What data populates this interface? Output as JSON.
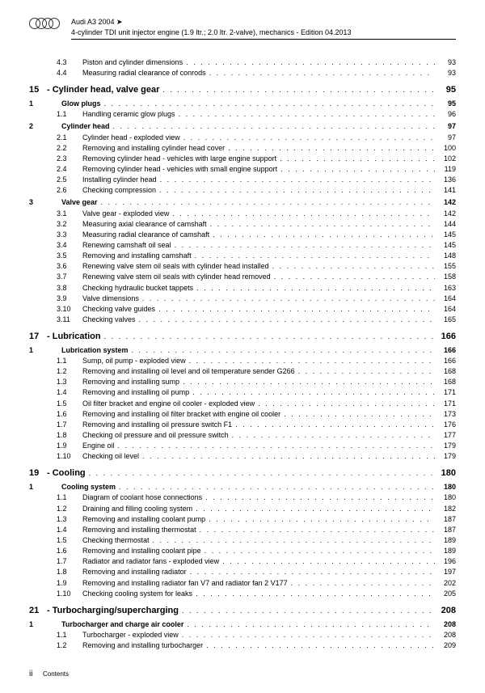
{
  "header": {
    "model": "Audi A3 2004 ➤",
    "subtitle": "4-cylinder TDI unit injector engine (1.9 ltr.; 2.0 ltr. 2-valve), mechanics - Edition 04.2013"
  },
  "footer": {
    "page": "ii",
    "label": "Contents"
  },
  "style": {
    "dot_char": ". ",
    "chap_num_prefix": "",
    "chap_sep": " - "
  },
  "toc": [
    {
      "num": "4.3",
      "txt": "Piston and cylinder dimensions",
      "pg": "93",
      "lvl": "item"
    },
    {
      "num": "4.4",
      "txt": "Measuring radial clearance of conrods",
      "pg": "93",
      "lvl": "item"
    },
    {
      "num": "15",
      "txt": "Cylinder head, valve gear",
      "pg": "95",
      "lvl": "chap"
    },
    {
      "num": "1",
      "txt": "Glow plugs",
      "pg": "95",
      "lvl": "sec"
    },
    {
      "num": "1.1",
      "txt": "Handling ceramic glow plugs",
      "pg": "96",
      "lvl": "item"
    },
    {
      "num": "2",
      "txt": "Cylinder head",
      "pg": "97",
      "lvl": "sec"
    },
    {
      "num": "2.1",
      "txt": "Cylinder head - exploded view",
      "pg": "97",
      "lvl": "item"
    },
    {
      "num": "2.2",
      "txt": "Removing and installing cylinder head cover",
      "pg": "100",
      "lvl": "item"
    },
    {
      "num": "2.3",
      "txt": "Removing cylinder head - vehicles with large engine support",
      "pg": "102",
      "lvl": "item"
    },
    {
      "num": "2.4",
      "txt": "Removing cylinder head - vehicles with small engine support",
      "pg": "119",
      "lvl": "item"
    },
    {
      "num": "2.5",
      "txt": "Installing cylinder head",
      "pg": "136",
      "lvl": "item"
    },
    {
      "num": "2.6",
      "txt": "Checking compression",
      "pg": "141",
      "lvl": "item"
    },
    {
      "num": "3",
      "txt": "Valve gear",
      "pg": "142",
      "lvl": "sec"
    },
    {
      "num": "3.1",
      "txt": "Valve gear - exploded view",
      "pg": "142",
      "lvl": "item"
    },
    {
      "num": "3.2",
      "txt": "Measuring axial clearance of camshaft",
      "pg": "144",
      "lvl": "item"
    },
    {
      "num": "3.3",
      "txt": "Measuring radial clearance of camshaft",
      "pg": "145",
      "lvl": "item"
    },
    {
      "num": "3.4",
      "txt": "Renewing camshaft oil seal",
      "pg": "145",
      "lvl": "item"
    },
    {
      "num": "3.5",
      "txt": "Removing and installing camshaft",
      "pg": "148",
      "lvl": "item"
    },
    {
      "num": "3.6",
      "txt": "Renewing valve stem oil seals with cylinder head installed",
      "pg": "155",
      "lvl": "item"
    },
    {
      "num": "3.7",
      "txt": "Renewing valve stem oil seals with cylinder head removed",
      "pg": "158",
      "lvl": "item"
    },
    {
      "num": "3.8",
      "txt": "Checking hydraulic bucket tappets",
      "pg": "163",
      "lvl": "item"
    },
    {
      "num": "3.9",
      "txt": "Valve dimensions",
      "pg": "164",
      "lvl": "item"
    },
    {
      "num": "3.10",
      "txt": "Checking valve guides",
      "pg": "164",
      "lvl": "item"
    },
    {
      "num": "3.11",
      "txt": "Checking valves",
      "pg": "165",
      "lvl": "item"
    },
    {
      "num": "17",
      "txt": "Lubrication",
      "pg": "166",
      "lvl": "chap"
    },
    {
      "num": "1",
      "txt": "Lubrication system",
      "pg": "166",
      "lvl": "sec"
    },
    {
      "num": "1.1",
      "txt": "Sump, oil pump - exploded view",
      "pg": "166",
      "lvl": "item"
    },
    {
      "num": "1.2",
      "txt": "Removing and installing oil level and oil temperature sender G266",
      "pg": "168",
      "lvl": "item"
    },
    {
      "num": "1.3",
      "txt": "Removing and installing sump",
      "pg": "168",
      "lvl": "item"
    },
    {
      "num": "1.4",
      "txt": "Removing and installing oil pump",
      "pg": "171",
      "lvl": "item"
    },
    {
      "num": "1.5",
      "txt": "Oil filter bracket and engine oil cooler - exploded view",
      "pg": "171",
      "lvl": "item"
    },
    {
      "num": "1.6",
      "txt": "Removing and installing oil filter bracket with engine oil cooler",
      "pg": "173",
      "lvl": "item"
    },
    {
      "num": "1.7",
      "txt": "Removing and installing oil pressure switch F1",
      "pg": "176",
      "lvl": "item"
    },
    {
      "num": "1.8",
      "txt": "Checking oil pressure and oil pressure switch",
      "pg": "177",
      "lvl": "item"
    },
    {
      "num": "1.9",
      "txt": "Engine oil",
      "pg": "179",
      "lvl": "item"
    },
    {
      "num": "1.10",
      "txt": "Checking oil level",
      "pg": "179",
      "lvl": "item"
    },
    {
      "num": "19",
      "txt": "Cooling",
      "pg": "180",
      "lvl": "chap"
    },
    {
      "num": "1",
      "txt": "Cooling system",
      "pg": "180",
      "lvl": "sec"
    },
    {
      "num": "1.1",
      "txt": "Diagram of coolant hose connections",
      "pg": "180",
      "lvl": "item"
    },
    {
      "num": "1.2",
      "txt": "Draining and filling cooling system",
      "pg": "182",
      "lvl": "item"
    },
    {
      "num": "1.3",
      "txt": "Removing and installing coolant pump",
      "pg": "187",
      "lvl": "item"
    },
    {
      "num": "1.4",
      "txt": "Removing and installing thermostat",
      "pg": "187",
      "lvl": "item"
    },
    {
      "num": "1.5",
      "txt": "Checking thermostat",
      "pg": "189",
      "lvl": "item"
    },
    {
      "num": "1.6",
      "txt": "Removing and installing coolant pipe",
      "pg": "189",
      "lvl": "item"
    },
    {
      "num": "1.7",
      "txt": "Radiator and radiator fans - exploded view",
      "pg": "196",
      "lvl": "item"
    },
    {
      "num": "1.8",
      "txt": "Removing and installing radiator",
      "pg": "197",
      "lvl": "item"
    },
    {
      "num": "1.9",
      "txt": "Removing and installing radiator fan V7 and radiator fan 2 V177",
      "pg": "202",
      "lvl": "item"
    },
    {
      "num": "1.10",
      "txt": "Checking cooling system for leaks",
      "pg": "205",
      "lvl": "item"
    },
    {
      "num": "21",
      "txt": "Turbocharging/supercharging",
      "pg": "208",
      "lvl": "chap"
    },
    {
      "num": "1",
      "txt": "Turbocharger and charge air cooler",
      "pg": "208",
      "lvl": "sec"
    },
    {
      "num": "1.1",
      "txt": "Turbocharger - exploded view",
      "pg": "208",
      "lvl": "item"
    },
    {
      "num": "1.2",
      "txt": "Removing and installing turbocharger",
      "pg": "209",
      "lvl": "item"
    }
  ]
}
